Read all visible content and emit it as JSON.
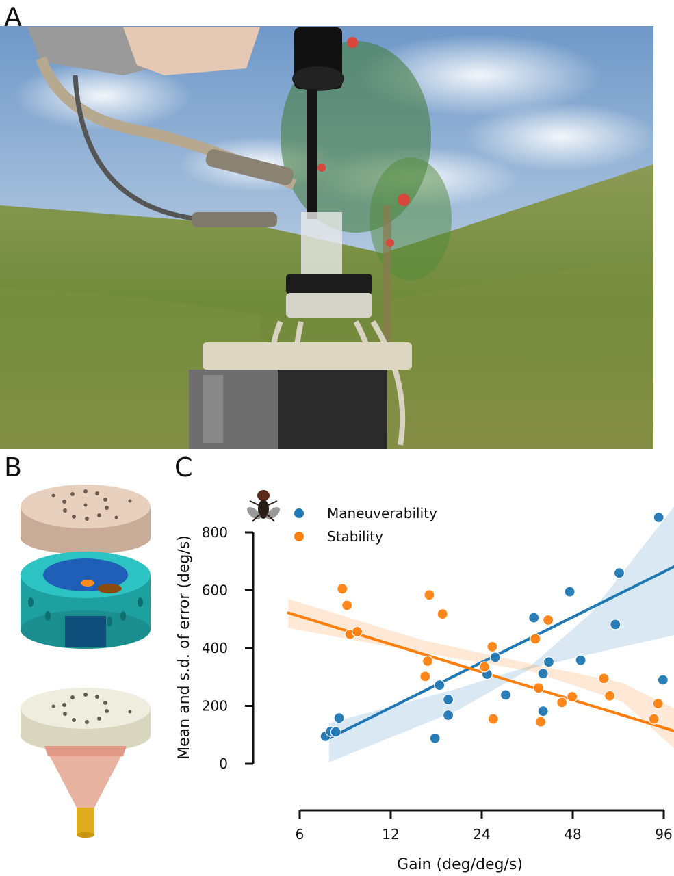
{
  "panels": {
    "a": "A",
    "b": "B",
    "c": "C"
  },
  "colors": {
    "maneuverability": "#1f77b4",
    "stability": "#ff7f0e"
  },
  "chart_data": {
    "type": "scatter",
    "xlabel": "Gain (deg/deg/s)",
    "ylabel": "Mean and s.d. of error (deg/s)",
    "x_scale": "log2",
    "xlim": [
      6,
      96
    ],
    "ylim": [
      0,
      800
    ],
    "x_ticks": [
      6,
      12,
      24,
      48,
      96
    ],
    "y_ticks": [
      0,
      200,
      400,
      600,
      800
    ],
    "legend_position": "top-left",
    "series": [
      {
        "name": "Maneuverability",
        "color": "#1f77b4",
        "points": [
          [
            7.3,
            95
          ],
          [
            7.6,
            112
          ],
          [
            7.9,
            110
          ],
          [
            8.1,
            158
          ],
          [
            16.8,
            88
          ],
          [
            17.4,
            272
          ],
          [
            18.6,
            222
          ],
          [
            18.6,
            168
          ],
          [
            25,
            310
          ],
          [
            26.6,
            368
          ],
          [
            28.8,
            238
          ],
          [
            35.7,
            505
          ],
          [
            38.3,
            312
          ],
          [
            38.3,
            182
          ],
          [
            40,
            352
          ],
          [
            46.9,
            595
          ],
          [
            51,
            358
          ],
          [
            66.4,
            482
          ],
          [
            68.4,
            660
          ],
          [
            92.4,
            852
          ],
          [
            95.4,
            290
          ]
        ],
        "fit": {
          "x": [
            7.5,
            104
          ],
          "y": [
            88,
            682
          ]
        },
        "ci_upper": [
          [
            7.5,
            140
          ],
          [
            20,
            260
          ],
          [
            35,
            340
          ],
          [
            55,
            520
          ],
          [
            104,
            890
          ]
        ],
        "ci_lower": [
          [
            7.5,
            5
          ],
          [
            20,
            185
          ],
          [
            35,
            330
          ],
          [
            55,
            380
          ],
          [
            104,
            445
          ]
        ]
      },
      {
        "name": "Stability",
        "color": "#ff7f0e",
        "points": [
          [
            8.3,
            605
          ],
          [
            8.6,
            548
          ],
          [
            8.8,
            448
          ],
          [
            9.3,
            457
          ],
          [
            15.6,
            302
          ],
          [
            15.9,
            355
          ],
          [
            16.1,
            584
          ],
          [
            17.8,
            518
          ],
          [
            24.5,
            335
          ],
          [
            26,
            405
          ],
          [
            26.2,
            155
          ],
          [
            36.1,
            432
          ],
          [
            37,
            262
          ],
          [
            37.6,
            145
          ],
          [
            39.8,
            497
          ],
          [
            44.2,
            212
          ],
          [
            47.8,
            232
          ],
          [
            60.8,
            295
          ],
          [
            63.6,
            235
          ],
          [
            89.1,
            155
          ],
          [
            92,
            208
          ]
        ],
        "fit": {
          "x": [
            5.5,
            117
          ],
          "y": [
            522,
            97
          ]
        },
        "ci_upper": [
          [
            5.5,
            570
          ],
          [
            15,
            430
          ],
          [
            35,
            345
          ],
          [
            70,
            280
          ],
          [
            117,
            165
          ]
        ],
        "ci_lower": [
          [
            5.5,
            470
          ],
          [
            15,
            385
          ],
          [
            35,
            320
          ],
          [
            70,
            215
          ],
          [
            117,
            5
          ]
        ]
      }
    ]
  }
}
